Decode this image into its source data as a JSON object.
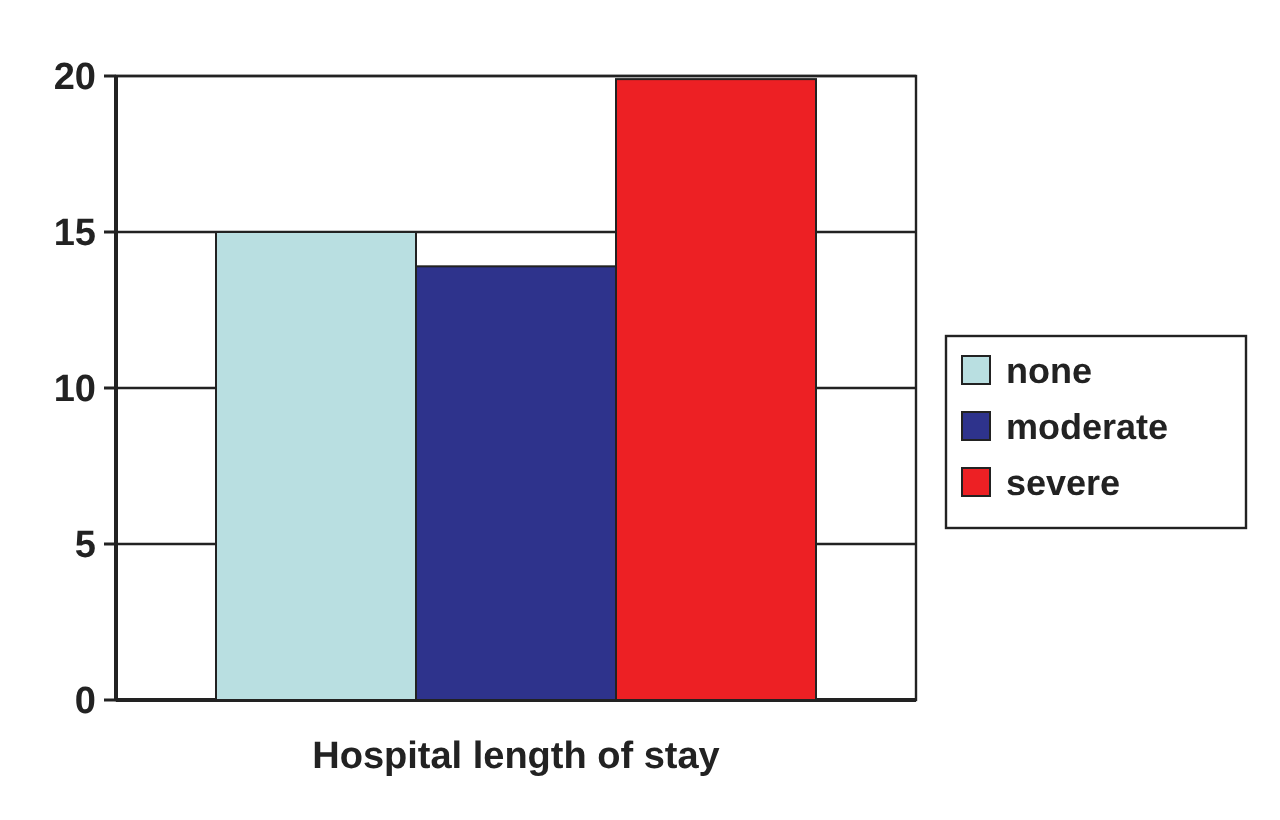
{
  "chart_data": {
    "type": "bar",
    "xlabel": "Hospital length of stay",
    "categories": [
      null
    ],
    "series": [
      {
        "name": "none",
        "color": "#b9dfe1",
        "values": [
          15
        ]
      },
      {
        "name": "moderate",
        "color": "#2e338c",
        "values": [
          13.9
        ]
      },
      {
        "name": "severe",
        "color": "#ed2024",
        "values": [
          19.9
        ]
      }
    ],
    "ylim": [
      0,
      20
    ],
    "yticks": [
      0,
      5,
      10,
      15,
      20
    ],
    "grid": "y",
    "legend": "right"
  }
}
